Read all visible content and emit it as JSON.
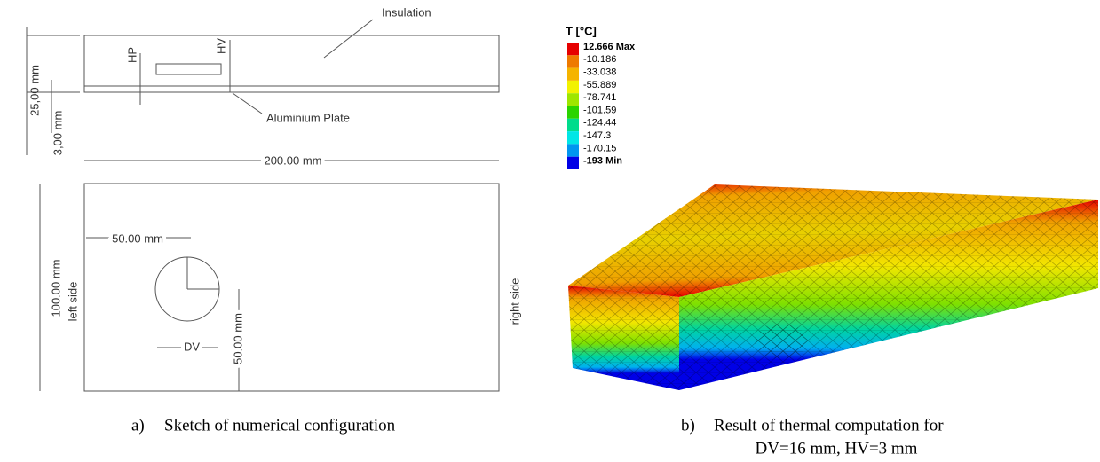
{
  "sketch": {
    "labels": {
      "insulation": "Insulation",
      "aluminium_plate": "Aluminium Plate",
      "hp": "HP",
      "hv": "HV",
      "thickness_total": "25,00 mm",
      "thickness_plate": "3,00 mm",
      "length": "200.00 mm",
      "width": "100.00 mm",
      "left_side": "left side",
      "right_side": "right side",
      "hole_x": "50.00 mm",
      "hole_y": "50.00 mm",
      "dv": "DV"
    }
  },
  "legend": {
    "title": "T [°C]",
    "entries": [
      {
        "label": "12.666 Max",
        "color": "#e60000"
      },
      {
        "label": "-10.186",
        "color": "#ee7a00"
      },
      {
        "label": "-33.038",
        "color": "#f5b400"
      },
      {
        "label": "-55.889",
        "color": "#f2f200"
      },
      {
        "label": "-78.741",
        "color": "#9ee600"
      },
      {
        "label": "-101.59",
        "color": "#2bd400"
      },
      {
        "label": "-124.44",
        "color": "#00dc8c"
      },
      {
        "label": "-147.3",
        "color": "#00e6e6"
      },
      {
        "label": "-170.15",
        "color": "#0096f0"
      },
      {
        "label": "-193 Min",
        "color": "#0000e6"
      }
    ]
  },
  "captions": [
    {
      "marker": "a)",
      "text": "Sketch of numerical configuration"
    },
    {
      "marker": "b)",
      "text": "Result of thermal computation for",
      "line2": "DV=16 mm, HV=3 mm"
    }
  ]
}
